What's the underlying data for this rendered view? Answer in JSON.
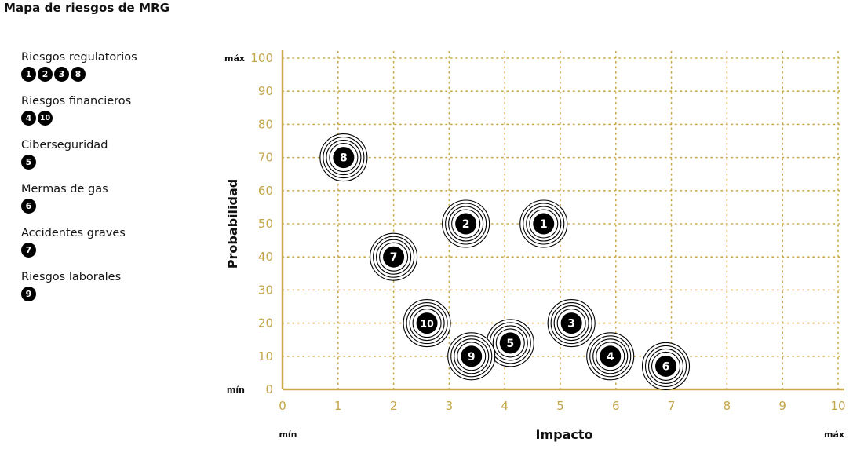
{
  "title": "Mapa de riesgos de MRG",
  "legend": [
    {
      "label": "Riesgos regulatorios",
      "ids": [
        "1",
        "2",
        "3",
        "8"
      ]
    },
    {
      "label": "Riesgos financieros",
      "ids": [
        "4",
        "10"
      ]
    },
    {
      "label": "Ciberseguridad",
      "ids": [
        "5"
      ]
    },
    {
      "label": "Mermas de gas",
      "ids": [
        "6"
      ]
    },
    {
      "label": "Accidentes graves",
      "ids": [
        "7"
      ]
    },
    {
      "label": "Riesgos laborales",
      "ids": [
        "9"
      ]
    }
  ],
  "colors": {
    "grid": "#c9ab4f",
    "tick": "#c3a54a",
    "axis": "#c9ab4f",
    "marker": "#000000"
  },
  "chart_data": {
    "type": "scatter",
    "xlabel": "Impacto",
    "ylabel": "Probabilidad",
    "x_min_word": "mín",
    "x_max_word": "máx",
    "y_min_word": "mín",
    "y_max_word": "máx",
    "xlim": [
      0,
      10
    ],
    "ylim": [
      0,
      100
    ],
    "xticks": [
      "0",
      "1",
      "2",
      "3",
      "4",
      "5",
      "6",
      "7",
      "8",
      "9",
      "10"
    ],
    "yticks": [
      "0",
      "10",
      "20",
      "30",
      "40",
      "50",
      "60",
      "70",
      "80",
      "90",
      "100"
    ],
    "grid": true,
    "points": [
      {
        "label": "1",
        "x": 4.7,
        "y": 50
      },
      {
        "label": "2",
        "x": 3.3,
        "y": 50
      },
      {
        "label": "3",
        "x": 5.2,
        "y": 20
      },
      {
        "label": "4",
        "x": 5.9,
        "y": 10
      },
      {
        "label": "5",
        "x": 4.1,
        "y": 14
      },
      {
        "label": "6",
        "x": 6.9,
        "y": 7
      },
      {
        "label": "7",
        "x": 2.0,
        "y": 40
      },
      {
        "label": "8",
        "x": 1.1,
        "y": 70
      },
      {
        "label": "9",
        "x": 3.4,
        "y": 10
      },
      {
        "label": "10",
        "x": 2.6,
        "y": 20
      }
    ]
  }
}
